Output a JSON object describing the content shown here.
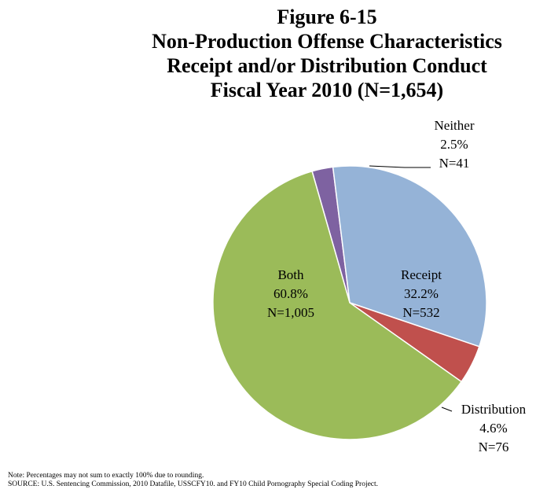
{
  "chart_data": {
    "type": "pie",
    "title_lines": [
      "Figure 6-15",
      "Non-Production Offense Characteristics",
      "Receipt and/or Distribution Conduct",
      "Fiscal Year 2010 (N=1,654)"
    ],
    "slices": [
      {
        "name": "Neither",
        "percent_label": "2.5%",
        "n_label": "N=41",
        "value": 41,
        "color": "#7E62A1"
      },
      {
        "name": "Receipt",
        "percent_label": "32.2%",
        "n_label": "N=532",
        "value": 532,
        "color": "#95B3D7"
      },
      {
        "name": "Distribution",
        "percent_label": "4.6%",
        "n_label": "N=76",
        "value": 76,
        "color": "#C0504D"
      },
      {
        "name": "Both",
        "percent_label": "60.8%",
        "n_label": "N=1,005",
        "value": 1005,
        "color": "#9BBB59"
      }
    ]
  },
  "notes": {
    "note": "Note: Percentages may not sum to exactly 100% due to rounding.",
    "source": "SOURCE:  U.S. Sentencing Commission, 2010 Datafile, USSCFY10. and FY10 Child Pornography Special Coding Project."
  }
}
